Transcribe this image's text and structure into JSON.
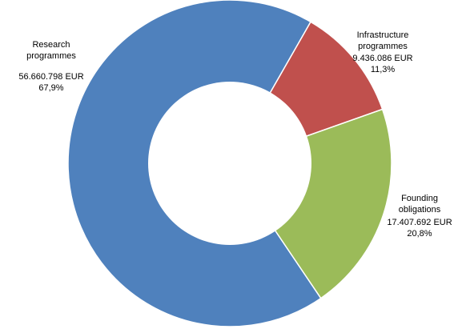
{
  "chart_data": {
    "type": "pie",
    "variant": "donut",
    "title": "",
    "unit": "EUR",
    "slices": [
      {
        "name": "Research programmes",
        "label_lines": [
          "Research",
          "programmes"
        ],
        "value": 56660798,
        "value_text": "56.660.798 EUR",
        "percent": 67.9,
        "percent_text": "67,9%",
        "color": "#4F81BD"
      },
      {
        "name": "Infrastructure programmes",
        "label_lines": [
          "Infrastructure",
          "programmes"
        ],
        "value": 9436086,
        "value_text": "9.436.086 EUR",
        "percent": 11.3,
        "percent_text": "11,3%",
        "color": "#C0504D"
      },
      {
        "name": "Founding obligations",
        "label_lines": [
          "Founding",
          "obligations"
        ],
        "value": 17407692,
        "value_text": "17.407.692 EUR",
        "percent": 20.8,
        "percent_text": "20,8%",
        "color": "#9BBB59"
      }
    ],
    "legend": "none",
    "grid": false
  }
}
